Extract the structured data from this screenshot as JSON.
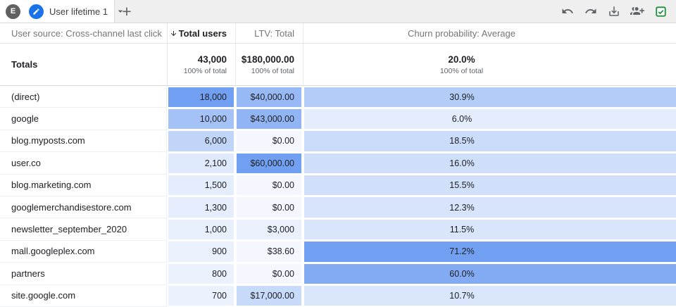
{
  "toolbar": {
    "avatar_letter": "E",
    "tab_title": "User lifetime 1",
    "tab_icon": "edit-pencil-icon",
    "tab_menu_icon": "chevron-down-icon",
    "add_tab_label": "+",
    "actions": [
      {
        "icon": "undo-icon"
      },
      {
        "icon": "redo-icon"
      },
      {
        "icon": "download-icon"
      },
      {
        "icon": "share-add-people-icon"
      },
      {
        "icon": "export-to-sheets-icon"
      }
    ],
    "colors": {
      "tab_accent": "#1A73E8",
      "sheets_green": "#1E8E3E",
      "icon_gray": "#5F6368"
    }
  },
  "table": {
    "header": {
      "dimension": "User source: Cross-channel last click",
      "metrics": [
        {
          "label": "Total users",
          "sorted": "descending",
          "sort_icon": "sort-arrow-down-icon"
        },
        {
          "label": "LTV: Total",
          "sorted": ""
        },
        {
          "label": "Churn probability: Average",
          "sorted": ""
        }
      ]
    },
    "totals": {
      "label": "Totals",
      "users": {
        "value": "43,000",
        "sub": "100% of total"
      },
      "ltv": {
        "value": "$180,000.00",
        "sub": "100% of total"
      },
      "churn": {
        "value": "20.0%",
        "sub": "100% of total"
      }
    },
    "rows": [
      {
        "label": "(direct)",
        "users": "18,000",
        "ltv": "$40,000.00",
        "churn": "30.9%"
      },
      {
        "label": "google",
        "users": "10,000",
        "ltv": "$43,000.00",
        "churn": "6.0%"
      },
      {
        "label": "blog.myposts.com",
        "users": "6,000",
        "ltv": "$0.00",
        "churn": "18.5%"
      },
      {
        "label": "user.co",
        "users": "2,100",
        "ltv": "$60,000.00",
        "churn": "16.0%"
      },
      {
        "label": "blog.marketing.com",
        "users": "1,500",
        "ltv": "$0.00",
        "churn": "15.5%"
      },
      {
        "label": "googlemerchandisestore.com",
        "users": "1,300",
        "ltv": "$0.00",
        "churn": "12.3%"
      },
      {
        "label": "newsletter_september_2020",
        "users": "1,000",
        "ltv": "$3,000",
        "churn": "11.5%"
      },
      {
        "label": "mall.googleplex.com",
        "users": "900",
        "ltv": "$38.60",
        "churn": "71.2%"
      },
      {
        "label": "partners",
        "users": "800",
        "ltv": "$0.00",
        "churn": "60.0%"
      },
      {
        "label": "site.google.com",
        "users": "700",
        "ltv": "$17,000.00",
        "churn": "10.7%"
      }
    ],
    "heat": {
      "min_color": "#F4F8FE",
      "max_color": "#719FF1",
      "exponent": 0.85
    }
  }
}
